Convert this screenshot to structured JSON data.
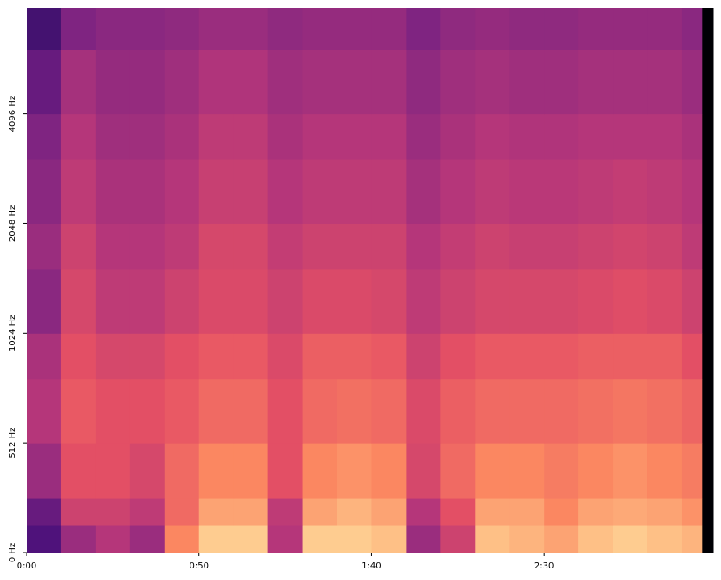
{
  "chart_data": {
    "type": "heatmap",
    "colormap": "magma",
    "yscale": "symlog",
    "xbins": [
      0,
      10,
      20,
      30,
      40,
      50,
      60,
      70,
      80,
      90,
      100,
      110,
      120,
      130,
      140,
      150,
      160,
      170,
      180,
      190,
      196,
      199
    ],
    "ybins": [
      0,
      128,
      256,
      512,
      768,
      1024,
      1536,
      2048,
      3072,
      4096,
      6144,
      8000
    ],
    "zlim": [
      -80,
      0
    ],
    "values": [
      [
        -60,
        -45,
        -40,
        -45,
        -20,
        -8,
        -8,
        -40,
        -8,
        -8,
        -10,
        -45,
        -35,
        -10,
        -12,
        -15,
        -10,
        -8,
        -10,
        -12,
        -80
      ],
      [
        -55,
        -35,
        -35,
        -38,
        -25,
        -15,
        -15,
        -38,
        -15,
        -12,
        -15,
        -40,
        -30,
        -15,
        -15,
        -20,
        -15,
        -14,
        -15,
        -18,
        -80
      ],
      [
        -45,
        -30,
        -30,
        -33,
        -25,
        -20,
        -20,
        -30,
        -20,
        -18,
        -20,
        -33,
        -25,
        -20,
        -20,
        -22,
        -20,
        -18,
        -20,
        -22,
        -80
      ],
      [
        -40,
        -28,
        -30,
        -30,
        -28,
        -25,
        -25,
        -30,
        -25,
        -24,
        -25,
        -32,
        -27,
        -25,
        -25,
        -25,
        -24,
        -23,
        -24,
        -26,
        -80
      ],
      [
        -42,
        -30,
        -33,
        -33,
        -30,
        -28,
        -28,
        -32,
        -27,
        -27,
        -28,
        -35,
        -30,
        -28,
        -28,
        -28,
        -27,
        -27,
        -27,
        -30,
        -80
      ],
      [
        -48,
        -33,
        -38,
        -38,
        -35,
        -32,
        -32,
        -35,
        -32,
        -32,
        -33,
        -38,
        -35,
        -33,
        -33,
        -33,
        -32,
        -31,
        -32,
        -35,
        -80
      ],
      [
        -45,
        -35,
        -40,
        -40,
        -38,
        -33,
        -33,
        -37,
        -35,
        -35,
        -35,
        -40,
        -37,
        -35,
        -36,
        -36,
        -35,
        -34,
        -35,
        -38,
        -80
      ],
      [
        -48,
        -38,
        -42,
        -42,
        -40,
        -36,
        -36,
        -40,
        -38,
        -38,
        -38,
        -43,
        -40,
        -38,
        -39,
        -39,
        -38,
        -37,
        -38,
        -40,
        -80
      ],
      [
        -50,
        -40,
        -44,
        -44,
        -42,
        -38,
        -38,
        -42,
        -40,
        -40,
        -40,
        -45,
        -42,
        -40,
        -41,
        -41,
        -40,
        -40,
        -40,
        -42,
        -80
      ],
      [
        -55,
        -43,
        -46,
        -46,
        -44,
        -41,
        -41,
        -44,
        -43,
        -43,
        -43,
        -47,
        -44,
        -43,
        -44,
        -44,
        -43,
        -43,
        -43,
        -45,
        -80
      ],
      [
        -62,
        -50,
        -48,
        -48,
        -47,
        -45,
        -45,
        -47,
        -46,
        -46,
        -46,
        -50,
        -47,
        -46,
        -47,
        -47,
        -46,
        -46,
        -46,
        -48,
        -80
      ]
    ],
    "xlim": [
      0,
      199
    ],
    "xticks": [
      {
        "value": 0,
        "label": "0:00"
      },
      {
        "value": 50,
        "label": "0:50"
      },
      {
        "value": 100,
        "label": "1:40"
      },
      {
        "value": 150,
        "label": "2:30"
      }
    ],
    "ylim": [
      0,
      8000
    ],
    "yticks": [
      {
        "value": 0,
        "label": "0 Hz"
      },
      {
        "value": 512,
        "label": "512 Hz"
      },
      {
        "value": 1024,
        "label": "1024 Hz"
      },
      {
        "value": 2048,
        "label": "2048 Hz"
      },
      {
        "value": 4096,
        "label": "4096 Hz"
      }
    ]
  }
}
